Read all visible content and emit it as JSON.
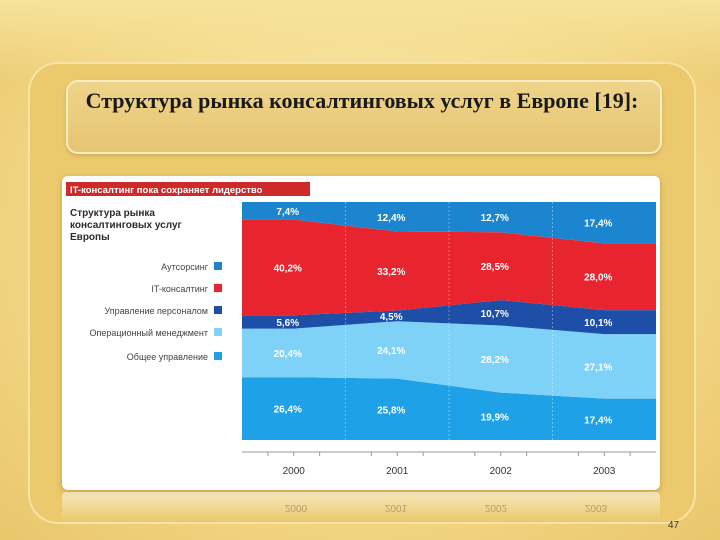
{
  "slide": {
    "title": "Структура рынка консалтинговых услуг в Европе [19]:",
    "page_number": "47"
  },
  "chart_data": {
    "type": "area",
    "banner": "IT-консалтинг пока сохраняет лидерство",
    "title": "Структура рынка консалтинговых услуг Европы",
    "categories": [
      "2000",
      "2001",
      "2002",
      "2003"
    ],
    "series": [
      {
        "name": "Общее управление",
        "values": [
          26.4,
          25.8,
          19.9,
          17.4
        ],
        "labels": [
          "26,4%",
          "25,8%",
          "19,9%",
          "17,4%"
        ],
        "color": "#1ea1e6"
      },
      {
        "name": "Операционный менеджмент",
        "values": [
          20.4,
          24.1,
          28.2,
          27.1
        ],
        "labels": [
          "20,4%",
          "24,1%",
          "28,2%",
          "27,1%"
        ],
        "color": "#7fd2f7"
      },
      {
        "name": "Управление персоналом",
        "values": [
          5.6,
          4.5,
          10.7,
          10.1
        ],
        "labels": [
          "5,6%",
          "4,5%",
          "10,7%",
          "10,1%"
        ],
        "color": "#1d4fa8"
      },
      {
        "name": "IT-консалтинг",
        "values": [
          40.2,
          33.2,
          28.5,
          28.0
        ],
        "labels": [
          "40,2%",
          "33,2%",
          "28,5%",
          "28,0%"
        ],
        "color": "#e8242f"
      },
      {
        "name": "Аутсорсинг",
        "values": [
          7.4,
          12.4,
          12.7,
          17.4
        ],
        "labels": [
          "7,4%",
          "12,4%",
          "12,7%",
          "17,4%"
        ],
        "color": "#1b86cf"
      }
    ],
    "legend_order": [
      "Аутсорсинг",
      "IT-консалтинг",
      "Управление персоналом",
      "Операционный менеджмент",
      "Общее управление"
    ],
    "stacked": true,
    "ylim": [
      0,
      100
    ],
    "colors": {
      "banner": "#cf2a2a"
    }
  }
}
